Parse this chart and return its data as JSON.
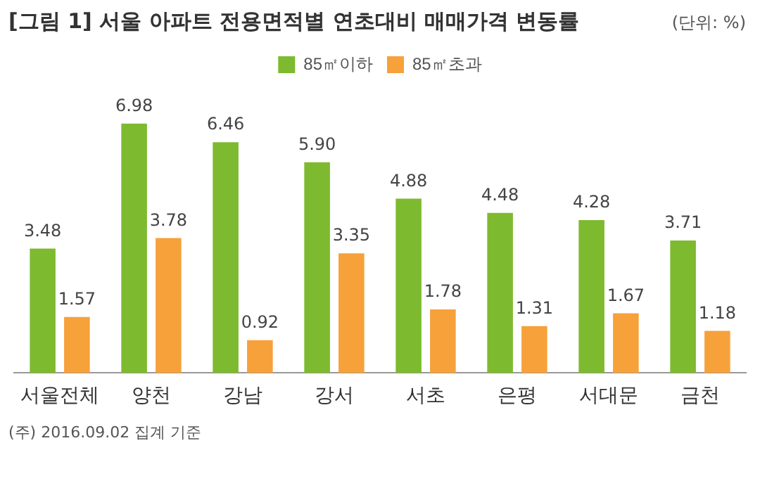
{
  "chart_data": {
    "type": "bar",
    "title": "[그림 1] 서울 아파트 전용면적별 연초대비 매매가격 변동률",
    "subtitle": "(단위: %)",
    "annotations": [
      "(주) 2016.09.02 집계 기준"
    ],
    "categories": [
      "서울전체",
      "양천",
      "강남",
      "강서",
      "서초",
      "은평",
      "서대문",
      "금천"
    ],
    "series": [
      {
        "name": "85㎡이하",
        "color": "#7dba2f",
        "values": [
          3.48,
          6.98,
          6.46,
          5.9,
          4.88,
          4.48,
          4.28,
          3.71
        ],
        "value_labels": [
          "3.48",
          "6.98",
          "6.46",
          "5.90",
          "4.88",
          "4.48",
          "4.28",
          "3.71"
        ]
      },
      {
        "name": "85㎡초과",
        "color": "#f7a13b",
        "values": [
          1.57,
          3.78,
          0.92,
          3.35,
          1.78,
          1.31,
          1.67,
          1.18
        ],
        "value_labels": [
          "1.57",
          "3.78",
          "0.92",
          "3.35",
          "1.78",
          "1.31",
          "1.67",
          "1.18"
        ]
      }
    ],
    "legend": "top",
    "grid": false
  }
}
